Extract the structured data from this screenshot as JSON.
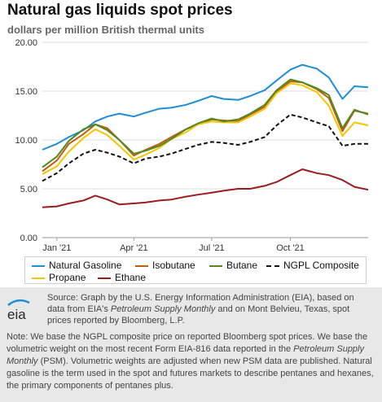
{
  "header": {
    "title": "Natural gas liquids spot prices",
    "subtitle": "dollars per million British thermal units"
  },
  "chart_data": {
    "type": "line",
    "title": "Natural gas liquids spot prices",
    "subtitle": "dollars per million British thermal units",
    "x_tick_labels": [
      "Jan '21",
      "Apr '21",
      "Jul '21",
      "Oct '21"
    ],
    "x_domain": [
      "2020-12-15",
      "2021-12-31"
    ],
    "x_ticks": [
      "2021-01-01",
      "2021-04-01",
      "2021-07-01",
      "2021-10-01"
    ],
    "ylim": [
      0,
      20
    ],
    "y_ticks": [
      0,
      5,
      10,
      15,
      20
    ],
    "y_tick_labels": [
      "0.00",
      "5.00",
      "10.00",
      "15.00",
      "20.00"
    ],
    "grid": "horizontal",
    "legend_position": "bottom",
    "x": [
      "2020-12-15",
      "2021-01-01",
      "2021-01-15",
      "2021-02-01",
      "2021-02-15",
      "2021-03-01",
      "2021-03-15",
      "2021-04-01",
      "2021-04-15",
      "2021-05-01",
      "2021-05-15",
      "2021-06-01",
      "2021-06-15",
      "2021-07-01",
      "2021-07-15",
      "2021-08-01",
      "2021-08-15",
      "2021-09-01",
      "2021-09-15",
      "2021-10-01",
      "2021-10-15",
      "2021-11-01",
      "2021-11-15",
      "2021-12-01",
      "2021-12-15",
      "2021-12-31"
    ],
    "series": [
      {
        "name": "Natural Gasoline",
        "color": "#1f8dd6",
        "dash": "solid",
        "values": [
          9.0,
          9.6,
          10.3,
          11.0,
          11.9,
          12.4,
          12.7,
          12.4,
          12.8,
          13.2,
          13.3,
          13.6,
          14.0,
          14.5,
          14.2,
          14.1,
          14.5,
          15.1,
          16.1,
          17.2,
          17.7,
          17.3,
          16.4,
          14.2,
          15.5,
          15.4
        ]
      },
      {
        "name": "Isobutane",
        "color": "#c25b12",
        "dash": "solid",
        "values": [
          6.8,
          7.9,
          9.6,
          10.6,
          11.6,
          11.2,
          10.0,
          8.4,
          9.0,
          9.6,
          10.3,
          11.1,
          11.6,
          12.1,
          12.0,
          11.9,
          12.6,
          13.4,
          14.9,
          16.0,
          15.9,
          15.2,
          14.3,
          10.9,
          13.0,
          12.7
        ]
      },
      {
        "name": "Butane",
        "color": "#4e8a1e",
        "dash": "solid",
        "values": [
          7.2,
          8.3,
          9.9,
          11.1,
          11.6,
          11.0,
          10.0,
          8.6,
          8.9,
          9.4,
          10.1,
          11.1,
          11.7,
          12.2,
          11.9,
          12.1,
          12.7,
          13.6,
          15.1,
          16.2,
          15.9,
          15.3,
          14.6,
          11.2,
          13.1,
          12.6
        ]
      },
      {
        "name": "NGPL Composite",
        "color": "#111111",
        "dash": "dashed",
        "values": [
          5.8,
          6.6,
          7.6,
          8.6,
          9.0,
          8.7,
          8.3,
          7.6,
          8.1,
          8.3,
          8.6,
          9.1,
          9.5,
          9.8,
          9.7,
          9.5,
          9.8,
          10.3,
          11.5,
          12.6,
          12.3,
          11.8,
          11.4,
          9.4,
          9.6,
          9.6
        ]
      },
      {
        "name": "Propane",
        "color": "#f5c400",
        "dash": "solid",
        "values": [
          6.5,
          7.3,
          8.8,
          10.2,
          11.1,
          10.5,
          9.4,
          8.0,
          8.5,
          9.2,
          10.1,
          10.8,
          11.6,
          11.9,
          11.8,
          11.8,
          12.4,
          13.2,
          14.8,
          15.8,
          15.6,
          14.9,
          13.5,
          10.4,
          11.8,
          11.5
        ]
      },
      {
        "name": "Ethane",
        "color": "#9b1c20",
        "dash": "solid",
        "values": [
          3.1,
          3.2,
          3.5,
          3.8,
          4.3,
          3.9,
          3.4,
          3.5,
          3.6,
          3.8,
          3.9,
          4.2,
          4.4,
          4.6,
          4.8,
          5.0,
          5.0,
          5.3,
          5.7,
          6.4,
          7.0,
          6.6,
          6.4,
          5.9,
          5.2,
          4.9
        ]
      }
    ]
  },
  "legend": {
    "items": [
      {
        "label": "Natural Gasoline",
        "color": "#1f8dd6",
        "dash": "solid"
      },
      {
        "label": "Isobutane",
        "color": "#c25b12",
        "dash": "solid"
      },
      {
        "label": "Butane",
        "color": "#4e8a1e",
        "dash": "solid"
      },
      {
        "label": "NGPL Composite",
        "color": "#111111",
        "dash": "dashed"
      },
      {
        "label": "Propane",
        "color": "#f5c400",
        "dash": "solid"
      },
      {
        "label": "Ethane",
        "color": "#9b1c20",
        "dash": "solid"
      }
    ]
  },
  "footer": {
    "source_prefix": "Source: Graph by the U.S. Energy Information Administration (EIA), based on data from EIA's ",
    "source_italic": "Petroleum Supply Monthly",
    "source_suffix": " and on Mont Belvieu, Texas, spot prices reported by Bloomberg, L.P.",
    "note_prefix": "Note: We base the NGPL composite price on reported Bloomberg spot prices. We base the volumetric weight on the most recent Form EIA-816 data reported in the ",
    "note_italic": "Petroleum Supply Monthly",
    "note_suffix": " (PSM). Volumetric weights are adjusted when new PSM data are published. Natural gasoline is the term used in the spot and futures markets to describe pentanes and hexanes, the primary components of pentanes plus.",
    "logo_text": "eia"
  }
}
